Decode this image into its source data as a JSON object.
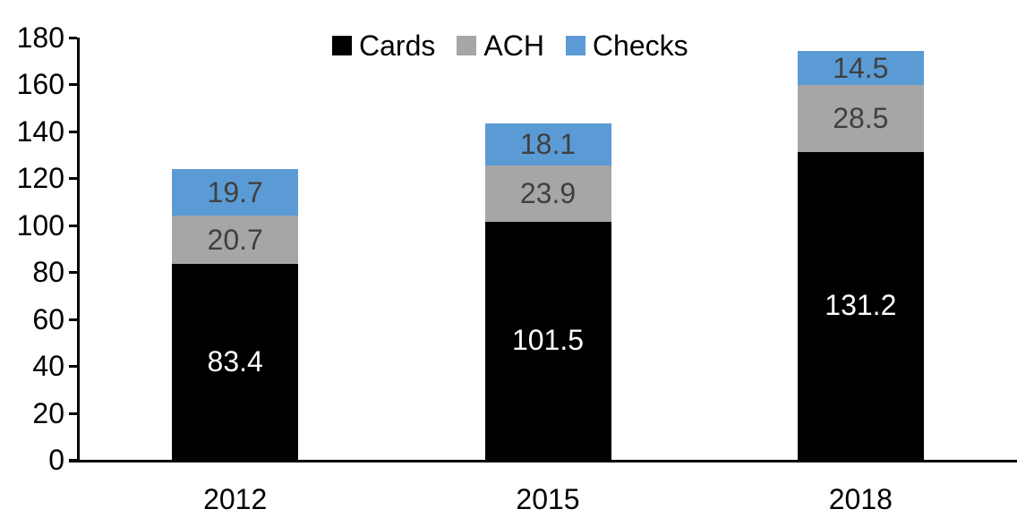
{
  "chart_data": {
    "type": "bar",
    "stacked": true,
    "title": "",
    "categories": [
      "2012",
      "2015",
      "2018"
    ],
    "series": [
      {
        "name": "Cards",
        "color": "#000000",
        "label_color": "#FFFFFF",
        "values": [
          83.4,
          101.5,
          131.2
        ]
      },
      {
        "name": "ACH",
        "color": "#A6A6A6",
        "label_color": "#404040",
        "values": [
          20.7,
          23.9,
          28.5
        ]
      },
      {
        "name": "Checks",
        "color": "#5B9BD5",
        "label_color": "#404040",
        "values": [
          19.7,
          18.1,
          14.5
        ]
      }
    ],
    "totals": [
      123.8,
      143.5,
      174.2
    ],
    "xlabel": "",
    "ylabel": "",
    "ylim": [
      0,
      180
    ],
    "ytick_step": 20,
    "yticks": [
      0,
      20,
      40,
      60,
      80,
      100,
      120,
      140,
      160,
      180
    ],
    "legend": {
      "position": "top",
      "entries": [
        "Cards",
        "ACH",
        "Checks"
      ]
    },
    "grid": false,
    "axis_color": "#000000",
    "background_color": "#FFFFFF"
  }
}
